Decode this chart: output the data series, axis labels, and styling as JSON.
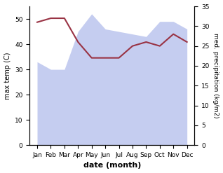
{
  "months": [
    "Jan",
    "Feb",
    "Mar",
    "Apr",
    "May",
    "Jun",
    "Jul",
    "Aug",
    "Sep",
    "Oct",
    "Nov",
    "Dec"
  ],
  "max_temp": [
    33,
    30,
    30,
    45,
    52,
    46,
    45,
    44,
    43,
    49,
    49,
    46
  ],
  "med_precip": [
    31,
    32,
    32,
    26,
    22,
    22,
    22,
    25,
    26,
    25,
    28,
    26
  ],
  "temp_fill_color": "#c5cdf0",
  "precip_line_color": "#993344",
  "left_ylabel": "max temp (C)",
  "right_ylabel": "med. precipitation (kg/m2)",
  "xlabel": "date (month)",
  "left_ylim": [
    0,
    55
  ],
  "right_ylim": [
    0,
    35
  ],
  "left_yticks": [
    0,
    10,
    20,
    30,
    40,
    50
  ],
  "right_yticks": [
    0,
    5,
    10,
    15,
    20,
    25,
    30,
    35
  ],
  "bg_color": "#ffffff"
}
